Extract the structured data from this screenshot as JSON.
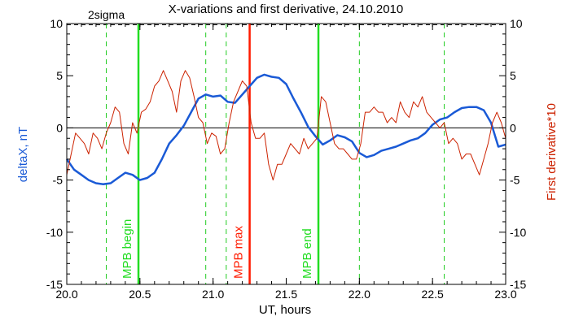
{
  "chart_data": {
    "type": "line",
    "title": "X-variations and first derivative, 24.10.2010",
    "xlabel": "UT, hours",
    "ylabel_left": "deltaX, nT",
    "ylabel_right": "First derivative*10",
    "xlim": [
      20.0,
      23.0
    ],
    "ylim": [
      -15,
      10
    ],
    "x_ticks": [
      "20.0",
      "20.5",
      "21.0",
      "21.5",
      "22.0",
      "22.5",
      "23.0"
    ],
    "y_ticks": [
      "-15",
      "-10",
      "-5",
      "0",
      "5",
      "10"
    ],
    "sigma_label": "2sigma",
    "sigma_level": 10,
    "zero_line": 0,
    "colors": {
      "deltax": "#1a5ad6",
      "derivative": "#cc2200",
      "mpb_boundary": "#22dd22",
      "mpb_max": "#ff1a00",
      "dashed": "#22cc22",
      "axis": "#000000",
      "left_label": "#1a5ad6",
      "right_label": "#cc2200"
    },
    "markers": [
      {
        "x": 20.49,
        "label": "MPB begin",
        "kind": "boundary"
      },
      {
        "x": 21.25,
        "label": "MPB max",
        "kind": "max"
      },
      {
        "x": 21.72,
        "label": "MPB end",
        "kind": "boundary"
      }
    ],
    "dashed_x": [
      20.27,
      20.95,
      21.09,
      22.0,
      22.58
    ],
    "series": [
      {
        "name": "deltaX, nT",
        "color": "#1a5ad6",
        "x": [
          20.0,
          20.05,
          20.1,
          20.15,
          20.2,
          20.25,
          20.3,
          20.35,
          20.4,
          20.45,
          20.5,
          20.55,
          20.6,
          20.65,
          20.7,
          20.75,
          20.8,
          20.85,
          20.9,
          20.95,
          21.0,
          21.05,
          21.1,
          21.15,
          21.2,
          21.25,
          21.3,
          21.35,
          21.4,
          21.45,
          21.5,
          21.55,
          21.6,
          21.65,
          21.7,
          21.75,
          21.8,
          21.85,
          21.9,
          21.95,
          22.0,
          22.05,
          22.1,
          22.15,
          22.2,
          22.25,
          22.3,
          22.35,
          22.4,
          22.45,
          22.5,
          22.55,
          22.6,
          22.65,
          22.7,
          22.75,
          22.8,
          22.85,
          22.9,
          22.95,
          23.0
        ],
        "y": [
          -3.0,
          -4.0,
          -4.5,
          -5.0,
          -5.3,
          -5.4,
          -5.3,
          -4.8,
          -4.3,
          -4.5,
          -5.0,
          -4.8,
          -4.3,
          -3.0,
          -1.5,
          -0.7,
          0.2,
          1.5,
          2.8,
          3.2,
          3.0,
          3.1,
          2.5,
          2.4,
          3.2,
          4.0,
          4.8,
          5.1,
          4.9,
          4.8,
          4.2,
          2.8,
          1.5,
          0.1,
          -0.8,
          -1.6,
          -1.2,
          -0.7,
          -0.9,
          -1.3,
          -2.4,
          -2.8,
          -2.6,
          -2.2,
          -2.0,
          -1.8,
          -1.5,
          -1.2,
          -1.0,
          -0.5,
          0.3,
          0.8,
          1.0,
          1.5,
          1.9,
          2.0,
          2.0,
          1.7,
          0.5,
          -1.8,
          -1.6
        ]
      },
      {
        "name": "First derivative*10",
        "color": "#cc2200",
        "x": [
          20.0,
          20.03,
          20.06,
          20.09,
          20.12,
          20.15,
          20.18,
          20.21,
          20.24,
          20.27,
          20.3,
          20.33,
          20.36,
          20.39,
          20.42,
          20.45,
          20.48,
          20.51,
          20.54,
          20.57,
          20.6,
          20.63,
          20.66,
          20.69,
          20.72,
          20.75,
          20.78,
          20.81,
          20.84,
          20.87,
          20.9,
          20.93,
          20.96,
          20.99,
          21.02,
          21.05,
          21.08,
          21.11,
          21.14,
          21.17,
          21.2,
          21.23,
          21.26,
          21.29,
          21.32,
          21.35,
          21.38,
          21.41,
          21.44,
          21.47,
          21.5,
          21.53,
          21.56,
          21.59,
          21.62,
          21.65,
          21.68,
          21.71,
          21.74,
          21.77,
          21.8,
          21.83,
          21.86,
          21.89,
          21.92,
          21.95,
          21.98,
          22.01,
          22.04,
          22.07,
          22.1,
          22.13,
          22.16,
          22.19,
          22.22,
          22.25,
          22.28,
          22.31,
          22.34,
          22.37,
          22.4,
          22.43,
          22.46,
          22.49,
          22.52,
          22.55,
          22.58,
          22.61,
          22.64,
          22.67,
          22.7,
          22.73,
          22.76,
          22.79,
          22.82,
          22.85,
          22.88,
          22.91,
          22.94,
          22.97,
          23.0
        ],
        "y": [
          -4.5,
          -2.5,
          -0.5,
          -1.0,
          -1.5,
          -2.5,
          -0.5,
          -1.0,
          -2.0,
          -0.5,
          0.5,
          2.0,
          1.5,
          -1.5,
          -2.5,
          0.5,
          -0.5,
          1.5,
          1.8,
          2.5,
          4.0,
          4.5,
          5.5,
          4.5,
          3.5,
          1.5,
          4.5,
          5.5,
          4.8,
          3.0,
          1.0,
          0.5,
          -1.5,
          -0.5,
          -0.8,
          -2.5,
          -2.0,
          0.5,
          2.5,
          3.5,
          4.5,
          4.0,
          0.5,
          -1.0,
          -1.0,
          -0.5,
          -3.5,
          -5.0,
          -3.5,
          -3.5,
          -2.5,
          -1.5,
          -2.0,
          -2.5,
          -1.0,
          -2.0,
          -1.5,
          -1.0,
          3.0,
          2.5,
          0.5,
          -1.5,
          -2.0,
          -2.0,
          -2.5,
          -3.0,
          -3.0,
          -1.5,
          1.5,
          1.5,
          2.0,
          1.5,
          1.5,
          0.5,
          1.0,
          0.5,
          2.5,
          1.5,
          1.0,
          2.5,
          2.0,
          3.0,
          1.5,
          1.0,
          0.5,
          0.0,
          0.5,
          -1.5,
          -1.0,
          -1.5,
          -3.0,
          -2.5,
          -2.5,
          -3.5,
          -4.5,
          -3.0,
          -1.5,
          0.5,
          1.5,
          0.5,
          -1.0
        ]
      }
    ]
  }
}
